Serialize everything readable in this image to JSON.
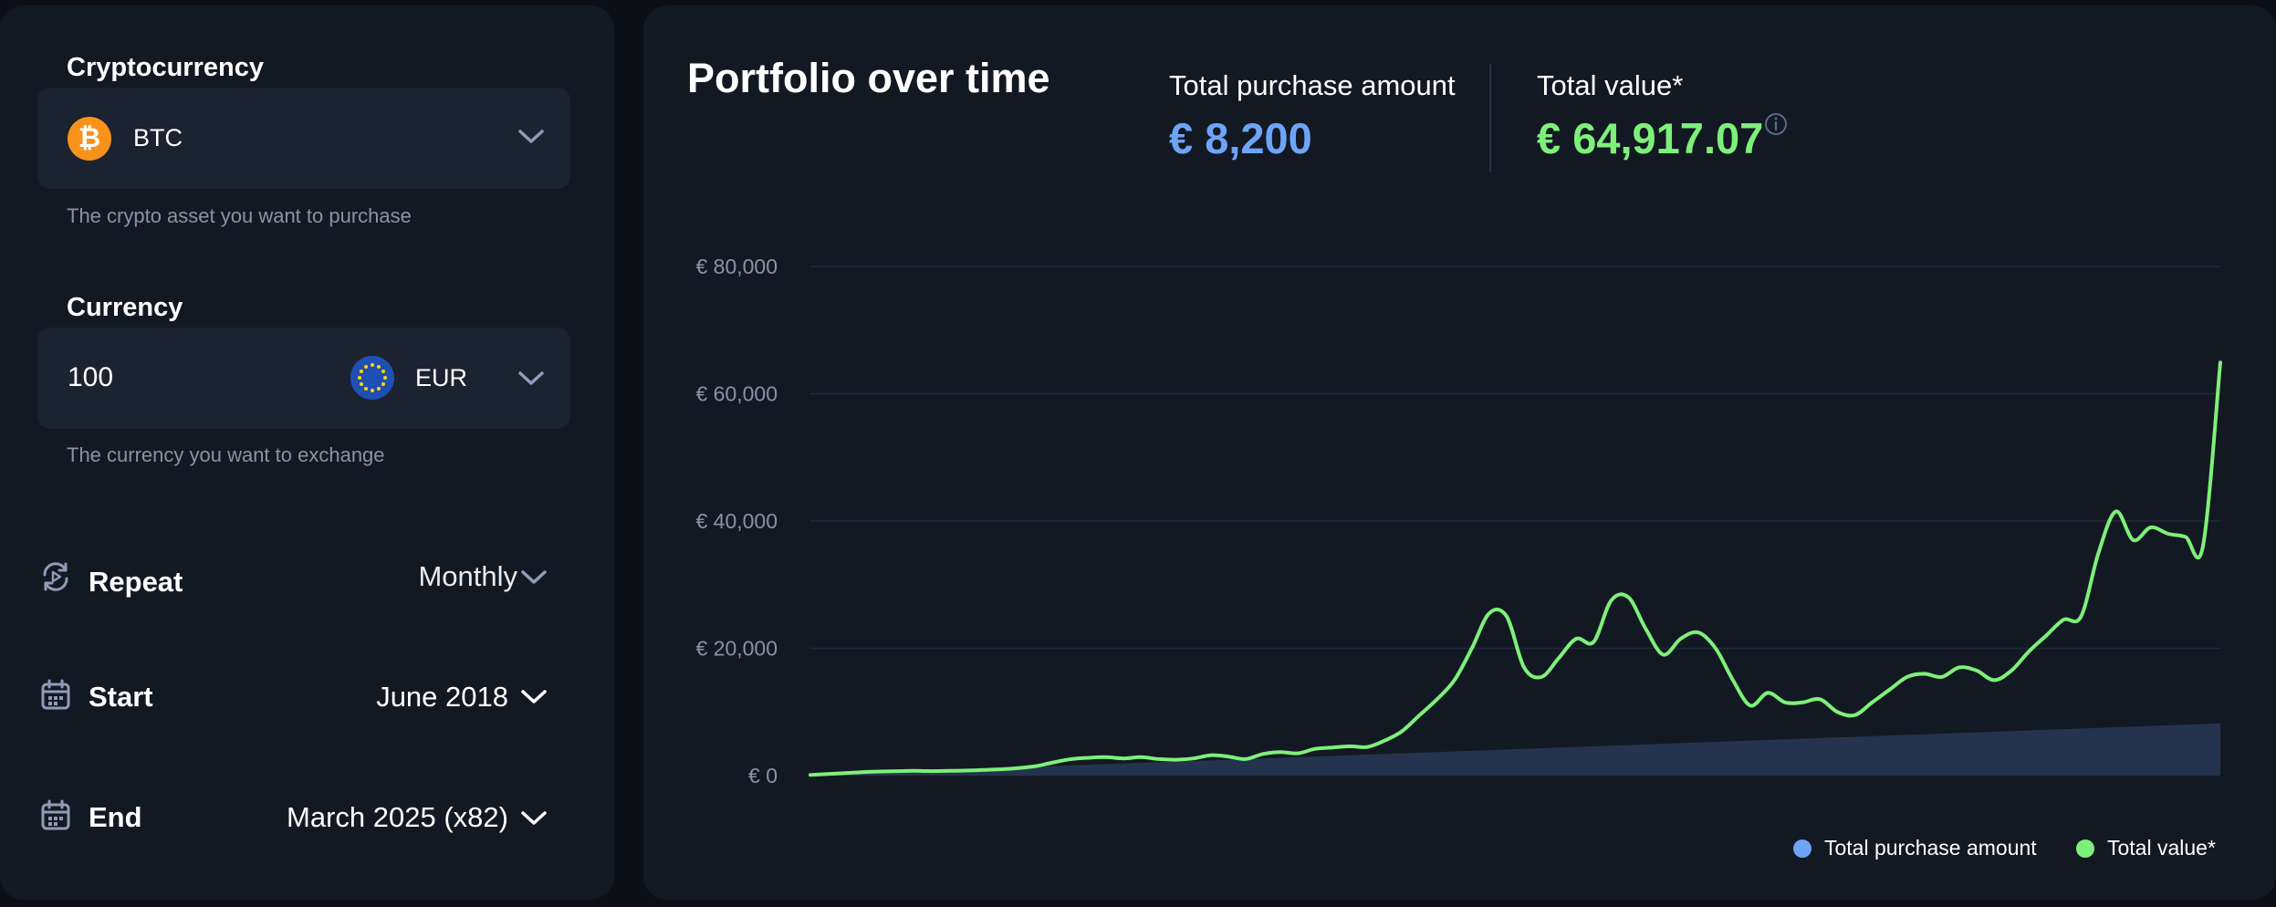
{
  "form": {
    "crypto": {
      "label": "Cryptocurrency",
      "icon": "bitcoin-icon",
      "symbol": "₿",
      "selected": "BTC",
      "helper": "The crypto asset you want to purchase"
    },
    "currency": {
      "label": "Currency",
      "amount": "100",
      "icon": "eu-flag-icon",
      "selected": "EUR",
      "helper": "The currency you want to exchange"
    },
    "repeat": {
      "icon": "repeat-icon",
      "label": "Repeat",
      "value": "Monthly"
    },
    "start": {
      "icon": "calendar-icon",
      "label": "Start",
      "value": "June 2018"
    },
    "end": {
      "icon": "calendar-icon",
      "label": "End",
      "value": "March 2025 (x82)"
    }
  },
  "summary": {
    "title": "Portfolio over time",
    "purchase_label": "Total purchase amount",
    "purchase_value": "€ 8,200",
    "value_label": "Total value*",
    "value_value": "€ 64,917.07",
    "purchase_color": "#6ea4f5",
    "value_color": "#7ef07a"
  },
  "chart_data": {
    "type": "area",
    "x_start": "June 2018",
    "x_end": "March 2025",
    "y_ticks": [
      "€ 80,000",
      "€ 60,000",
      "€ 40,000",
      "€ 20,000",
      "€ 0"
    ],
    "ylim": [
      0,
      80000
    ],
    "grid": true,
    "legend_position": "bottom-right",
    "series": [
      {
        "name": "Total purchase amount",
        "color": "#6ea4f5",
        "fill": "#24344f",
        "values": [
          100,
          200,
          300,
          400,
          500,
          600,
          700,
          800,
          900,
          1000,
          1100,
          1200,
          1300,
          1400,
          1500,
          1600,
          1700,
          1800,
          1900,
          2000,
          2100,
          2200,
          2300,
          2400,
          2500,
          2600,
          2700,
          2800,
          2900,
          3000,
          3100,
          3200,
          3300,
          3400,
          3500,
          3600,
          3700,
          3800,
          3900,
          4000,
          4100,
          4200,
          4300,
          4400,
          4500,
          4600,
          4700,
          4800,
          4900,
          5000,
          5100,
          5200,
          5300,
          5400,
          5500,
          5600,
          5700,
          5800,
          5900,
          6000,
          6100,
          6200,
          6300,
          6400,
          6500,
          6600,
          6700,
          6800,
          6900,
          7000,
          7100,
          7200,
          7300,
          7400,
          7500,
          7600,
          7700,
          7800,
          7900,
          8000,
          8100,
          8200
        ]
      },
      {
        "name": "Total value*",
        "color": "#7ef07a",
        "values": [
          100,
          250,
          400,
          550,
          650,
          700,
          750,
          700,
          750,
          800,
          900,
          1000,
          1200,
          1500,
          2100,
          2600,
          2800,
          2900,
          2700,
          2900,
          2600,
          2500,
          2700,
          3200,
          3000,
          2600,
          3400,
          3700,
          3500,
          4200,
          4400,
          4600,
          4500,
          5500,
          7000,
          9500,
          12000,
          15000,
          20000,
          25500,
          25000,
          17000,
          15500,
          18500,
          21500,
          21000,
          27500,
          28000,
          23000,
          19000,
          21500,
          22500,
          20000,
          15000,
          11000,
          13000,
          11500,
          11500,
          12000,
          10000,
          9500,
          11500,
          13500,
          15500,
          16000,
          15500,
          17000,
          16500,
          15000,
          16500,
          19500,
          22000,
          24500,
          25000,
          35000,
          41500,
          37000,
          39000,
          38000,
          37500,
          36000,
          64917
        ]
      }
    ]
  }
}
